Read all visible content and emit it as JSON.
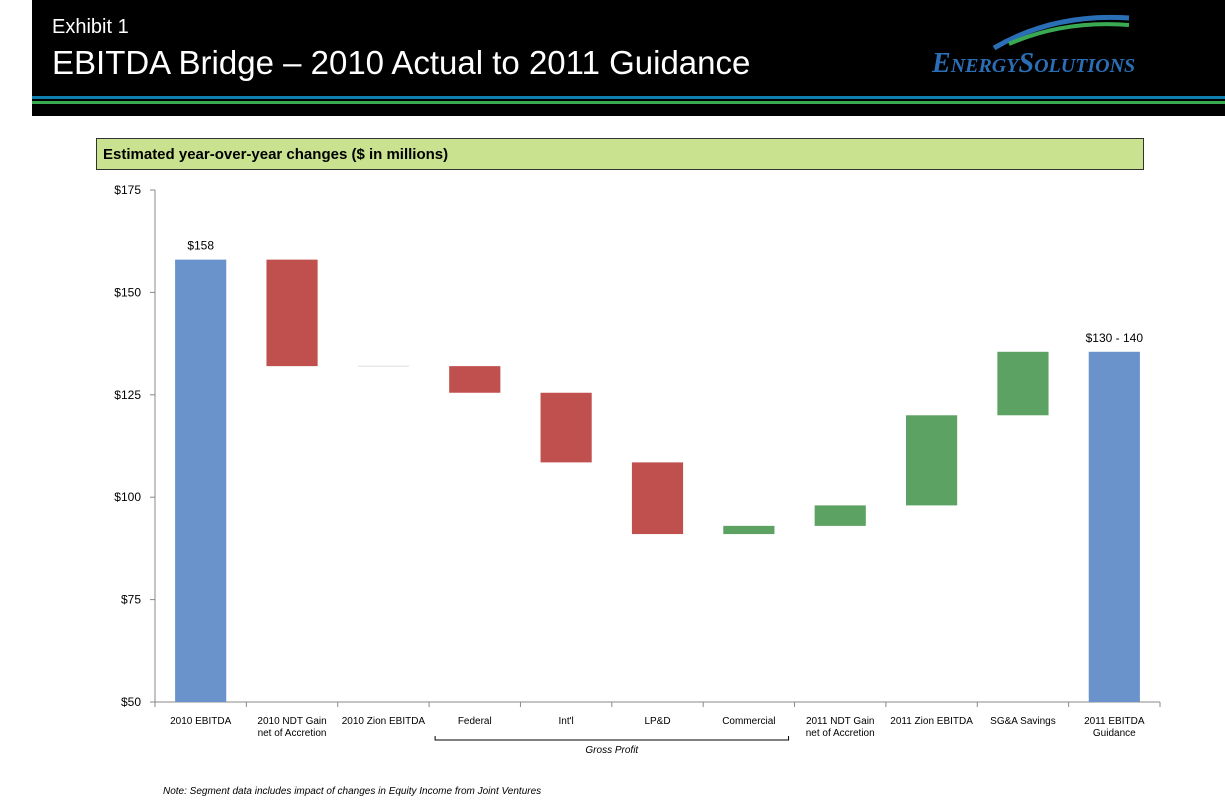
{
  "header": {
    "exhibit": "Exhibit 1",
    "title": "EBITDA Bridge – 2010 Actual to 2011 Guidance",
    "logo_text": "EnergySolutions"
  },
  "subtitle": "Estimated year-over-year changes ($ in millions)",
  "note": "Note: Segment data includes impact of changes in Equity Income from Joint Ventures",
  "colors": {
    "total": "#6a93cc",
    "decrease": "#c0504d",
    "increase": "#5ba263",
    "subtitle_bg": "#c9e28f"
  },
  "chart_data": {
    "type": "bar",
    "subtype": "waterfall",
    "categories": [
      "2010 EBITDA",
      "2010 NDT Gain net of Accretion",
      "2010 Zion EBITDA",
      "Federal",
      "Int'l",
      "LP&D",
      "Commercial",
      "2011 NDT Gain net of Accretion",
      "2011 Zion EBITDA",
      "SG&A Savings",
      "2011 EBITDA Guidance"
    ],
    "category_lines": [
      [
        "2010 EBITDA"
      ],
      [
        "2010 NDT Gain",
        "net of Accretion"
      ],
      [
        "2010 Zion EBITDA"
      ],
      [
        "Federal"
      ],
      [
        "Int'l"
      ],
      [
        "LP&D"
      ],
      [
        "Commercial"
      ],
      [
        "2011 NDT Gain",
        "net of Accretion"
      ],
      [
        "2011 Zion EBITDA"
      ],
      [
        "SG&A Savings"
      ],
      [
        "2011 EBITDA",
        "Guidance"
      ]
    ],
    "bars": [
      {
        "kind": "total",
        "start": 50,
        "end": 158
      },
      {
        "kind": "decrease",
        "start": 158,
        "end": 132
      },
      {
        "kind": "decrease",
        "start": 132,
        "end": 132
      },
      {
        "kind": "decrease",
        "start": 132,
        "end": 125.5
      },
      {
        "kind": "decrease",
        "start": 125.5,
        "end": 108.5
      },
      {
        "kind": "decrease",
        "start": 108.5,
        "end": 91
      },
      {
        "kind": "increase",
        "start": 91,
        "end": 93
      },
      {
        "kind": "increase",
        "start": 93,
        "end": 98
      },
      {
        "kind": "increase",
        "start": 98,
        "end": 120
      },
      {
        "kind": "increase",
        "start": 120,
        "end": 135.5
      },
      {
        "kind": "total",
        "start": 50,
        "end": 135.5
      }
    ],
    "data_labels": [
      {
        "index": 0,
        "text": "$158"
      },
      {
        "index": 10,
        "text": "$130 - 140"
      }
    ],
    "ylim": [
      50,
      175
    ],
    "yticks": [
      {
        "value": 50,
        "label": "$50"
      },
      {
        "value": 75,
        "label": "$75"
      },
      {
        "value": 100,
        "label": "$100"
      },
      {
        "value": 125,
        "label": "$125"
      },
      {
        "value": 150,
        "label": "$150"
      },
      {
        "value": 175,
        "label": "$175"
      }
    ],
    "group": {
      "label": "Gross Profit",
      "from_index": 3,
      "to_index": 6
    },
    "grid": false,
    "legend": "none"
  }
}
